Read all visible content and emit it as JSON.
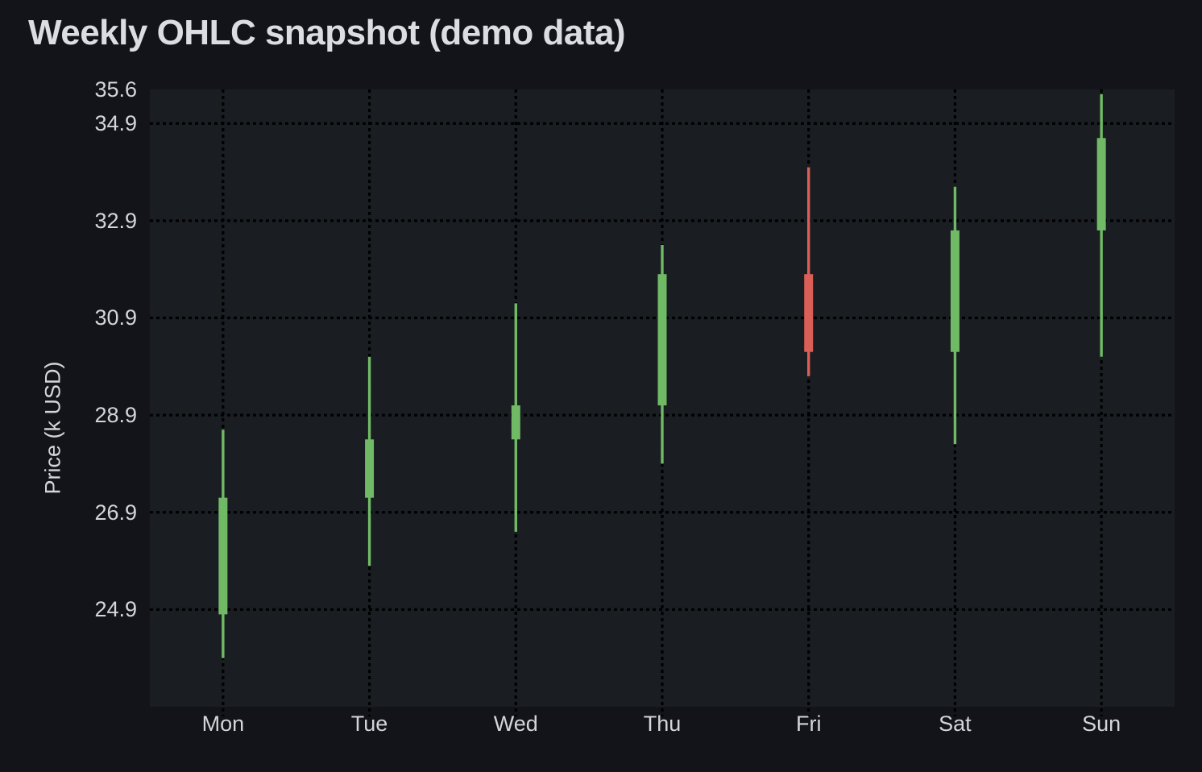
{
  "title": "Weekly OHLC snapshot (demo data)",
  "chart_data": {
    "type": "candlestick",
    "title": "Weekly OHLC snapshot (demo data)",
    "xlabel": "",
    "ylabel": "Price (k USD)",
    "categories": [
      "Mon",
      "Tue",
      "Wed",
      "Thu",
      "Fri",
      "Sat",
      "Sun"
    ],
    "series": [
      {
        "name": "OHLC",
        "points": [
          {
            "day": "Mon",
            "open": 24.8,
            "high": 28.6,
            "low": 23.9,
            "close": 27.2,
            "direction": "up"
          },
          {
            "day": "Tue",
            "open": 27.2,
            "high": 30.1,
            "low": 25.8,
            "close": 28.4,
            "direction": "up"
          },
          {
            "day": "Wed",
            "open": 28.4,
            "high": 31.2,
            "low": 26.5,
            "close": 29.1,
            "direction": "up"
          },
          {
            "day": "Thu",
            "open": 29.1,
            "high": 32.4,
            "low": 27.9,
            "close": 31.8,
            "direction": "up"
          },
          {
            "day": "Fri",
            "open": 31.8,
            "high": 34.0,
            "low": 29.7,
            "close": 30.2,
            "direction": "down"
          },
          {
            "day": "Sat",
            "open": 30.2,
            "high": 33.6,
            "low": 28.3,
            "close": 32.7,
            "direction": "up"
          },
          {
            "day": "Sun",
            "open": 32.7,
            "high": 35.5,
            "low": 30.1,
            "close": 34.6,
            "direction": "up"
          }
        ]
      }
    ],
    "ylim": [
      22.9,
      35.6
    ],
    "yticks": [
      35.6,
      34.9,
      32.9,
      30.9,
      28.9,
      26.9,
      24.9
    ],
    "grid": "dotted",
    "legend": "none",
    "colors": {
      "up": "#70ba66",
      "down": "#db5e57",
      "grid": "#000000",
      "background": "#131419",
      "plot_background": "#1a1d22",
      "title_text": "#dcdde0",
      "tick_text": "#d4d5d7"
    }
  }
}
